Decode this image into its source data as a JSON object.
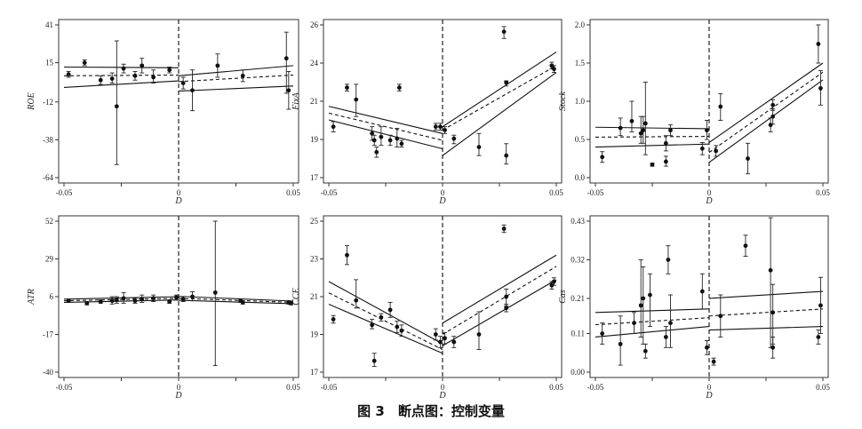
{
  "caption": "图 3　断点图：控制变量",
  "chart_data": [
    {
      "type": "scatter",
      "ylabel": "ROE",
      "xlabel": "D",
      "xlim": [
        -0.05,
        0.05
      ],
      "ylim": [
        -64,
        41
      ],
      "xticks": [
        "-0.05",
        "-0.025",
        "0",
        "0.025",
        "0.05"
      ],
      "yticks": [
        "-64",
        "-38",
        "-12",
        "15",
        "41"
      ],
      "ytick_values": [
        -64,
        -38,
        -12,
        15,
        41
      ],
      "cutoff": 0,
      "points": [
        {
          "x": -0.048,
          "y": 7,
          "lo": 5,
          "hi": 9
        },
        {
          "x": -0.041,
          "y": 15,
          "lo": 13,
          "hi": 17
        },
        {
          "x": -0.034,
          "y": 3,
          "lo": 0,
          "hi": 6
        },
        {
          "x": -0.029,
          "y": 4,
          "lo": 1,
          "hi": 8
        },
        {
          "x": -0.027,
          "y": -15,
          "lo": -55,
          "hi": 30
        },
        {
          "x": -0.024,
          "y": 11,
          "lo": 8,
          "hi": 14
        },
        {
          "x": -0.019,
          "y": 6,
          "lo": 3,
          "hi": 9
        },
        {
          "x": -0.016,
          "y": 13,
          "lo": 8,
          "hi": 18
        },
        {
          "x": -0.011,
          "y": 5,
          "lo": 1,
          "hi": 10
        },
        {
          "x": -0.004,
          "y": 10,
          "lo": 8,
          "hi": 12
        },
        {
          "x": 0.002,
          "y": 1,
          "lo": -3,
          "hi": 5
        },
        {
          "x": 0.006,
          "y": -4,
          "lo": -18,
          "hi": 10
        },
        {
          "x": 0.017,
          "y": 13,
          "lo": 5,
          "hi": 21
        },
        {
          "x": 0.028,
          "y": 6,
          "lo": 2,
          "hi": 10
        },
        {
          "x": 0.047,
          "y": 18,
          "lo": -6,
          "hi": 36
        },
        {
          "x": 0.048,
          "y": -4,
          "lo": -17,
          "hi": 9
        }
      ],
      "fit_left": {
        "start": 6.0,
        "end": 6.5
      },
      "fit_right": {
        "start": 2.0,
        "end": 6.5
      },
      "ci_left": {
        "lo_start": -2.0,
        "lo_end": 2.5,
        "hi_start": 12.0,
        "hi_end": 11.5
      },
      "ci_right": {
        "lo_start": -4.5,
        "lo_end": -1.0,
        "hi_start": 6.0,
        "hi_end": 13.0
      }
    },
    {
      "type": "scatter",
      "ylabel": "FixA",
      "xlabel": "D",
      "xlim": [
        -0.05,
        0.05
      ],
      "ylim": [
        17,
        26
      ],
      "xticks": [
        "-0.05",
        "-0.025",
        "0",
        "0.025",
        "0.05"
      ],
      "yticks": [
        "17",
        "19",
        "21",
        "24",
        "26"
      ],
      "ytick_values": [
        17,
        19.25,
        21.5,
        23.75,
        26
      ],
      "cutoff": 0,
      "points": [
        {
          "x": -0.048,
          "y": 20.0,
          "lo": 19.7,
          "hi": 20.3
        },
        {
          "x": -0.042,
          "y": 22.3,
          "lo": 22.1,
          "hi": 22.5
        },
        {
          "x": -0.038,
          "y": 21.6,
          "lo": 20.6,
          "hi": 22.5
        },
        {
          "x": -0.031,
          "y": 19.6,
          "lo": 19.2,
          "hi": 20.0
        },
        {
          "x": -0.03,
          "y": 19.2,
          "lo": 18.9,
          "hi": 19.5
        },
        {
          "x": -0.029,
          "y": 18.5,
          "lo": 18.2,
          "hi": 18.8
        },
        {
          "x": -0.027,
          "y": 19.4,
          "lo": 18.9,
          "hi": 20.0
        },
        {
          "x": -0.023,
          "y": 19.2,
          "lo": 18.9,
          "hi": 19.5
        },
        {
          "x": -0.02,
          "y": 19.3,
          "lo": 18.8,
          "hi": 19.9
        },
        {
          "x": -0.019,
          "y": 22.3,
          "lo": 22.1,
          "hi": 22.5
        },
        {
          "x": -0.018,
          "y": 19.0,
          "lo": 18.8,
          "hi": 19.2
        },
        {
          "x": -0.003,
          "y": 20.0,
          "lo": 19.8,
          "hi": 20.2
        },
        {
          "x": -0.001,
          "y": 20.0,
          "lo": 19.8,
          "hi": 20.2
        },
        {
          "x": 0.001,
          "y": 19.8,
          "lo": 19.6,
          "hi": 20.0
        },
        {
          "x": 0.005,
          "y": 19.3,
          "lo": 19.0,
          "hi": 19.5
        },
        {
          "x": 0.016,
          "y": 18.8,
          "lo": 18.3,
          "hi": 19.6
        },
        {
          "x": 0.027,
          "y": 25.6,
          "lo": 25.2,
          "hi": 25.9
        },
        {
          "x": 0.028,
          "y": 22.6,
          "lo": 22.4,
          "hi": 22.7
        },
        {
          "x": 0.028,
          "y": 18.3,
          "lo": 17.8,
          "hi": 19.0
        },
        {
          "x": 0.048,
          "y": 23.6,
          "lo": 23.4,
          "hi": 23.8
        },
        {
          "x": 0.049,
          "y": 23.4,
          "lo": 23.2,
          "hi": 23.6
        }
      ],
      "fit_left": {
        "start": 20.8,
        "end": 19.2
      },
      "fit_right": {
        "start": 19.8,
        "end": 23.6
      },
      "ci_left": {
        "lo_start": 20.4,
        "lo_end": 18.7,
        "hi_start": 21.2,
        "hi_end": 19.6
      },
      "ci_right": {
        "lo_start": 18.3,
        "lo_end": 23.2,
        "hi_start": 20.0,
        "hi_end": 24.4
      }
    },
    {
      "type": "scatter",
      "ylabel": "Stock",
      "xlabel": "D",
      "xlim": [
        -0.05,
        0.05
      ],
      "ylim": [
        0.0,
        2.0
      ],
      "xticks": [
        "-0.05",
        "-0.025",
        "0",
        "0.025",
        "0.05"
      ],
      "yticks": [
        "0.0",
        "0.5",
        "1.0",
        "1.5",
        "2.0"
      ],
      "ytick_values": [
        0.0,
        0.5,
        1.0,
        1.5,
        2.0
      ],
      "cutoff": 0,
      "points": [
        {
          "x": -0.047,
          "y": 0.27,
          "lo": 0.2,
          "hi": 0.34
        },
        {
          "x": -0.039,
          "y": 0.65,
          "lo": 0.55,
          "hi": 0.78
        },
        {
          "x": -0.034,
          "y": 0.74,
          "lo": 0.6,
          "hi": 1.0
        },
        {
          "x": -0.03,
          "y": 0.58,
          "lo": 0.45,
          "hi": 0.8
        },
        {
          "x": -0.029,
          "y": 0.62,
          "lo": 0.45,
          "hi": 0.8
        },
        {
          "x": -0.028,
          "y": 0.71,
          "lo": 0.3,
          "hi": 1.25
        },
        {
          "x": -0.025,
          "y": 0.17,
          "lo": 0.15,
          "hi": 0.19
        },
        {
          "x": -0.019,
          "y": 0.45,
          "lo": 0.35,
          "hi": 0.55
        },
        {
          "x": -0.019,
          "y": 0.21,
          "lo": 0.15,
          "hi": 0.28
        },
        {
          "x": -0.017,
          "y": 0.62,
          "lo": 0.55,
          "hi": 0.69
        },
        {
          "x": -0.003,
          "y": 0.38,
          "lo": 0.3,
          "hi": 0.46
        },
        {
          "x": -0.001,
          "y": 0.62,
          "lo": 0.5,
          "hi": 0.75
        },
        {
          "x": 0.003,
          "y": 0.35,
          "lo": 0.28,
          "hi": 0.42
        },
        {
          "x": 0.005,
          "y": 0.93,
          "lo": 0.75,
          "hi": 1.1
        },
        {
          "x": 0.017,
          "y": 0.25,
          "lo": 0.05,
          "hi": 0.45
        },
        {
          "x": 0.027,
          "y": 0.69,
          "lo": 0.6,
          "hi": 0.78
        },
        {
          "x": 0.028,
          "y": 0.95,
          "lo": 0.88,
          "hi": 1.02
        },
        {
          "x": 0.028,
          "y": 0.8,
          "lo": 0.7,
          "hi": 0.9
        },
        {
          "x": 0.048,
          "y": 1.75,
          "lo": 1.5,
          "hi": 2.0
        },
        {
          "x": 0.049,
          "y": 1.17,
          "lo": 0.95,
          "hi": 1.4
        }
      ],
      "fit_left": {
        "start": 0.53,
        "end": 0.54
      },
      "fit_right": {
        "start": 0.33,
        "end": 1.38
      },
      "ci_left": {
        "lo_start": 0.4,
        "lo_end": 0.44,
        "hi_start": 0.66,
        "hi_end": 0.64
      },
      "ci_right": {
        "lo_start": 0.2,
        "lo_end": 1.28,
        "hi_start": 0.46,
        "hi_end": 1.5
      }
    },
    {
      "type": "scatter",
      "ylabel": "ATR",
      "xlabel": "D",
      "xlim": [
        -0.05,
        0.05
      ],
      "ylim": [
        -40,
        52
      ],
      "xticks": [
        "-0.05",
        "-0.025",
        "0",
        "0.025",
        "0.05"
      ],
      "yticks": [
        "-40",
        "-17",
        "6",
        "29",
        "52"
      ],
      "ytick_values": [
        -40,
        -17,
        6,
        29,
        52
      ],
      "cutoff": 0,
      "points": [
        {
          "x": -0.048,
          "y": 3.5,
          "lo": 2.5,
          "hi": 4.5
        },
        {
          "x": -0.04,
          "y": 2.0,
          "lo": 1.0,
          "hi": 3.0
        },
        {
          "x": -0.034,
          "y": 3.0,
          "lo": 2.0,
          "hi": 4.0
        },
        {
          "x": -0.029,
          "y": 3.5,
          "lo": 1.5,
          "hi": 6.0
        },
        {
          "x": -0.027,
          "y": 4.0,
          "lo": 2.0,
          "hi": 6.0
        },
        {
          "x": -0.024,
          "y": 5.0,
          "lo": 2.0,
          "hi": 8.5
        },
        {
          "x": -0.019,
          "y": 3.5,
          "lo": 2.0,
          "hi": 5.0
        },
        {
          "x": -0.016,
          "y": 4.5,
          "lo": 2.5,
          "hi": 7.0
        },
        {
          "x": -0.011,
          "y": 5.0,
          "lo": 3.0,
          "hi": 7.0
        },
        {
          "x": -0.004,
          "y": 3.0,
          "lo": 2.0,
          "hi": 4.0
        },
        {
          "x": -0.001,
          "y": 5.5,
          "lo": 4.0,
          "hi": 7.0
        },
        {
          "x": 0.002,
          "y": 4.5,
          "lo": 3.0,
          "hi": 6.0
        },
        {
          "x": 0.006,
          "y": 6.0,
          "lo": 3.5,
          "hi": 9.0
        },
        {
          "x": 0.016,
          "y": 8.5,
          "lo": -36.0,
          "hi": 52.0
        },
        {
          "x": 0.027,
          "y": 3.5,
          "lo": 2.5,
          "hi": 4.5
        },
        {
          "x": 0.028,
          "y": 2.5,
          "lo": 1.5,
          "hi": 3.5
        },
        {
          "x": 0.048,
          "y": 2.5,
          "lo": 1.5,
          "hi": 3.5
        },
        {
          "x": 0.049,
          "y": 2.0,
          "lo": 1.0,
          "hi": 3.0
        }
      ],
      "fit_left": {
        "start": 3.5,
        "end": 5.0
      },
      "fit_right": {
        "start": 5.0,
        "end": 2.5
      },
      "ci_left": {
        "lo_start": 2.5,
        "lo_end": 4.0,
        "hi_start": 4.5,
        "hi_end": 6.0
      },
      "ci_right": {
        "lo_start": 3.8,
        "lo_end": 1.7,
        "hi_start": 6.2,
        "hi_end": 3.3
      }
    },
    {
      "type": "scatter",
      "ylabel": "CCE",
      "xlabel": "D",
      "xlim": [
        -0.05,
        0.05
      ],
      "ylim": [
        17,
        25
      ],
      "xticks": [
        "-0.05",
        "-0.025",
        "0",
        "0.025",
        "0.05"
      ],
      "yticks": [
        "17",
        "19",
        "21",
        "23",
        "25"
      ],
      "ytick_values": [
        17,
        19,
        21,
        23,
        25
      ],
      "cutoff": 0,
      "points": [
        {
          "x": -0.048,
          "y": 19.8,
          "lo": 19.6,
          "hi": 20.0
        },
        {
          "x": -0.042,
          "y": 23.2,
          "lo": 22.7,
          "hi": 23.7
        },
        {
          "x": -0.038,
          "y": 20.8,
          "lo": 20.4,
          "hi": 21.9
        },
        {
          "x": -0.031,
          "y": 19.5,
          "lo": 19.3,
          "hi": 19.8
        },
        {
          "x": -0.03,
          "y": 17.6,
          "lo": 17.3,
          "hi": 18.0
        },
        {
          "x": -0.027,
          "y": 19.9,
          "lo": 19.7,
          "hi": 20.1
        },
        {
          "x": -0.023,
          "y": 20.3,
          "lo": 19.9,
          "hi": 20.7
        },
        {
          "x": -0.02,
          "y": 19.4,
          "lo": 19.1,
          "hi": 19.7
        },
        {
          "x": -0.018,
          "y": 19.2,
          "lo": 18.9,
          "hi": 19.5
        },
        {
          "x": -0.003,
          "y": 19.0,
          "lo": 18.7,
          "hi": 19.3
        },
        {
          "x": -0.001,
          "y": 18.6,
          "lo": 18.3,
          "hi": 18.9
        },
        {
          "x": 0.001,
          "y": 18.8,
          "lo": 18.5,
          "hi": 19.1
        },
        {
          "x": 0.005,
          "y": 18.6,
          "lo": 18.3,
          "hi": 18.9
        },
        {
          "x": 0.016,
          "y": 19.0,
          "lo": 18.2,
          "hi": 20.2
        },
        {
          "x": 0.027,
          "y": 24.6,
          "lo": 24.4,
          "hi": 24.8
        },
        {
          "x": 0.028,
          "y": 21.0,
          "lo": 20.5,
          "hi": 21.4
        },
        {
          "x": 0.028,
          "y": 20.4,
          "lo": 20.2,
          "hi": 20.6
        },
        {
          "x": 0.048,
          "y": 21.6,
          "lo": 21.4,
          "hi": 21.8
        },
        {
          "x": 0.049,
          "y": 21.8,
          "lo": 21.6,
          "hi": 22.0
        }
      ],
      "fit_left": {
        "start": 21.2,
        "end": 18.2
      },
      "fit_right": {
        "start": 19.0,
        "end": 22.6
      },
      "ci_left": {
        "lo_start": 20.6,
        "lo_end": 18.0,
        "hi_start": 21.8,
        "hi_end": 18.5
      },
      "ci_right": {
        "lo_start": 18.4,
        "lo_end": 21.9,
        "hi_start": 19.6,
        "hi_end": 23.2
      }
    },
    {
      "type": "scatter",
      "ylabel": "Cas",
      "xlabel": "D",
      "xlim": [
        -0.05,
        0.05
      ],
      "ylim": [
        0.0,
        0.43
      ],
      "xticks": [
        "-0.05",
        "-0.025",
        "0",
        "0.025",
        "0.05"
      ],
      "yticks": [
        "0.00",
        "0.11",
        "0.21",
        "0.32",
        "0.43"
      ],
      "ytick_values": [
        0.0,
        0.11,
        0.21,
        0.32,
        0.43
      ],
      "cutoff": 0,
      "points": [
        {
          "x": -0.047,
          "y": 0.11,
          "lo": 0.08,
          "hi": 0.14
        },
        {
          "x": -0.039,
          "y": 0.08,
          "lo": 0.02,
          "hi": 0.16
        },
        {
          "x": -0.033,
          "y": 0.14,
          "lo": 0.11,
          "hi": 0.17
        },
        {
          "x": -0.03,
          "y": 0.19,
          "lo": 0.1,
          "hi": 0.32
        },
        {
          "x": -0.029,
          "y": 0.21,
          "lo": 0.08,
          "hi": 0.3
        },
        {
          "x": -0.028,
          "y": 0.06,
          "lo": 0.04,
          "hi": 0.08
        },
        {
          "x": -0.026,
          "y": 0.22,
          "lo": 0.13,
          "hi": 0.28
        },
        {
          "x": -0.019,
          "y": 0.1,
          "lo": 0.07,
          "hi": 0.13
        },
        {
          "x": -0.018,
          "y": 0.32,
          "lo": 0.28,
          "hi": 0.36
        },
        {
          "x": -0.017,
          "y": 0.14,
          "lo": 0.07,
          "hi": 0.22
        },
        {
          "x": -0.003,
          "y": 0.23,
          "lo": 0.18,
          "hi": 0.28
        },
        {
          "x": -0.001,
          "y": 0.07,
          "lo": 0.05,
          "hi": 0.09
        },
        {
          "x": 0.002,
          "y": 0.03,
          "lo": 0.02,
          "hi": 0.04
        },
        {
          "x": 0.005,
          "y": 0.16,
          "lo": 0.1,
          "hi": 0.22
        },
        {
          "x": 0.016,
          "y": 0.36,
          "lo": 0.33,
          "hi": 0.39
        },
        {
          "x": 0.027,
          "y": 0.29,
          "lo": 0.07,
          "hi": 0.44
        },
        {
          "x": 0.028,
          "y": 0.07,
          "lo": 0.04,
          "hi": 0.1
        },
        {
          "x": 0.028,
          "y": 0.17,
          "lo": 0.08,
          "hi": 0.25
        },
        {
          "x": 0.048,
          "y": 0.1,
          "lo": 0.08,
          "hi": 0.12
        },
        {
          "x": 0.049,
          "y": 0.19,
          "lo": 0.11,
          "hi": 0.27
        }
      ],
      "fit_left": {
        "start": 0.135,
        "end": 0.155
      },
      "fit_right": {
        "start": 0.16,
        "end": 0.18
      },
      "ci_left": {
        "lo_start": 0.1,
        "lo_end": 0.13,
        "hi_start": 0.17,
        "hi_end": 0.18
      },
      "ci_right": {
        "lo_start": 0.12,
        "lo_end": 0.13,
        "hi_start": 0.21,
        "hi_end": 0.23
      }
    }
  ]
}
